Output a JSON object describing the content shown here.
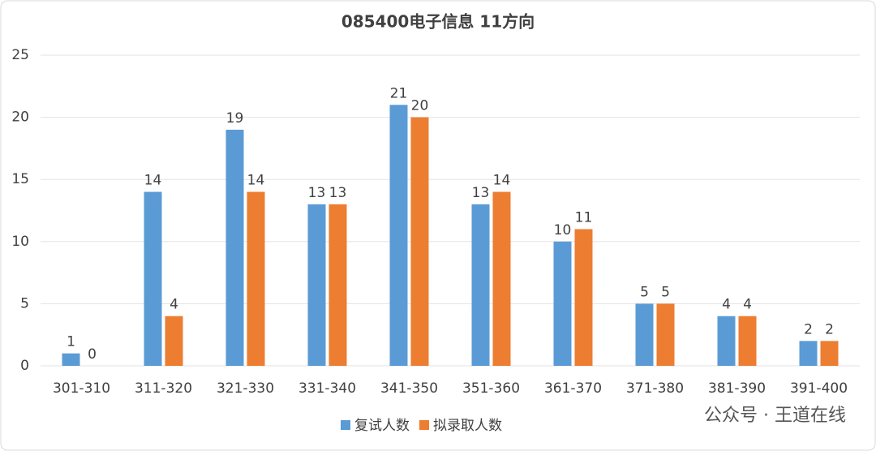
{
  "chart_data": {
    "type": "bar",
    "title": "085400电子信息 11方向",
    "categories": [
      "301-310",
      "311-320",
      "321-330",
      "331-340",
      "341-350",
      "351-360",
      "361-370",
      "371-380",
      "381-390",
      "391-400"
    ],
    "series": [
      {
        "name": "复试人数",
        "color": "#5b9bd5",
        "values": [
          1,
          14,
          19,
          13,
          21,
          13,
          10,
          5,
          4,
          2
        ]
      },
      {
        "name": "拟录取人数",
        "color": "#ed7d31",
        "values": [
          0,
          4,
          14,
          13,
          20,
          14,
          11,
          5,
          4,
          2
        ]
      }
    ],
    "ylim": [
      0,
      25
    ],
    "yticks": [
      0,
      5,
      10,
      15,
      20,
      25
    ],
    "grid": true,
    "legend": "bottom",
    "annotation": "公众号 · 王道在线"
  }
}
